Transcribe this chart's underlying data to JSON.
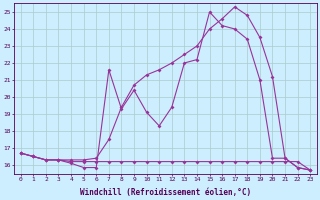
{
  "xlabel": "Windchill (Refroidissement éolien,°C)",
  "bg_color": "#cceeff",
  "grid_color": "#aacccc",
  "line_color": "#993399",
  "marker": "D",
  "markersize": 2.0,
  "linewidth": 0.8,
  "xlim": [
    -0.5,
    23.5
  ],
  "ylim": [
    15.5,
    25.5
  ],
  "yticks": [
    16,
    17,
    18,
    19,
    20,
    21,
    22,
    23,
    24,
    25
  ],
  "xticks": [
    0,
    1,
    2,
    3,
    4,
    5,
    6,
    7,
    8,
    9,
    10,
    11,
    12,
    13,
    14,
    15,
    16,
    17,
    18,
    19,
    20,
    21,
    22,
    23
  ],
  "line1_x": [
    0,
    1,
    2,
    3,
    4,
    5,
    6,
    7,
    8,
    9,
    10,
    11,
    12,
    13,
    14,
    15,
    16,
    17,
    18,
    19,
    20,
    21,
    22,
    23
  ],
  "line1_y": [
    16.7,
    16.5,
    16.3,
    16.3,
    16.1,
    15.85,
    15.85,
    21.6,
    19.3,
    20.4,
    19.1,
    18.3,
    19.4,
    22.0,
    22.2,
    25.0,
    24.2,
    24.0,
    23.4,
    21.0,
    16.4,
    16.4,
    15.85,
    15.7
  ],
  "line2_x": [
    0,
    1,
    2,
    3,
    4,
    5,
    6,
    7,
    8,
    9,
    10,
    11,
    12,
    13,
    14,
    15,
    16,
    17,
    18,
    19,
    20,
    21,
    22,
    23
  ],
  "line2_y": [
    16.7,
    16.5,
    16.3,
    16.3,
    16.2,
    16.2,
    16.2,
    16.2,
    16.2,
    16.2,
    16.2,
    16.2,
    16.2,
    16.2,
    16.2,
    16.2,
    16.2,
    16.2,
    16.2,
    16.2,
    16.2,
    16.2,
    16.2,
    15.7
  ],
  "line3_x": [
    0,
    1,
    2,
    3,
    4,
    5,
    6,
    7,
    8,
    9,
    10,
    11,
    12,
    13,
    14,
    15,
    16,
    17,
    18,
    19,
    20,
    21,
    22,
    23
  ],
  "line3_y": [
    16.7,
    16.5,
    16.3,
    16.3,
    16.3,
    16.3,
    16.4,
    17.5,
    19.4,
    20.7,
    21.3,
    21.6,
    22.0,
    22.5,
    23.0,
    24.0,
    24.6,
    25.3,
    24.8,
    23.5,
    21.2,
    16.4,
    15.85,
    15.7
  ]
}
